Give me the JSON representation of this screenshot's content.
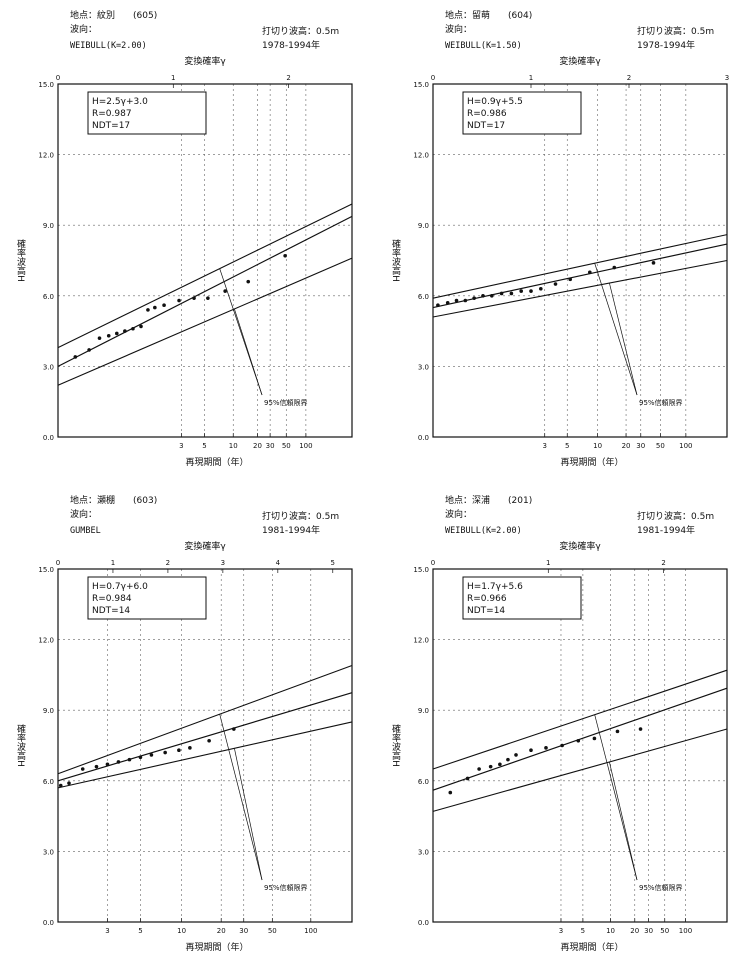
{
  "chart_data": [
    {
      "type": "scatter",
      "station": "地点：紋別　　(605)",
      "direction": "波向：",
      "distribution": "WEIBULL(K=2.00)",
      "threshold": "打切り波高：0.5m",
      "period": "1978-1994年",
      "top_axis_label": "変換確率γ",
      "bottom_axis_label": "再現期間（年）",
      "ylabel": "確率波高H",
      "gamma_ticks": [
        "0",
        "1",
        "2"
      ],
      "gamma_max": 2.55,
      "return_ticks": [
        {
          "label": "3",
          "gamma": 1.07
        },
        {
          "label": "5",
          "gamma": 1.27
        },
        {
          "label": "10",
          "gamma": 1.52
        },
        {
          "label": "20",
          "gamma": 1.73
        },
        {
          "label": "30",
          "gamma": 1.84
        },
        {
          "label": "50",
          "gamma": 1.98
        },
        {
          "label": "100",
          "gamma": 2.15
        }
      ],
      "yticks": [
        "0.0",
        "3.0",
        "6.0",
        "9.0",
        "12.0",
        "15.0"
      ],
      "ylim": [
        0,
        15
      ],
      "stats": [
        "H=2.5γ+3.0",
        "R=0.987",
        "NDT=17"
      ],
      "regression": {
        "slope": 2.5,
        "intercept": 3.0
      },
      "ci_lines": {
        "upper": [
          [
            0,
            3.8
          ],
          [
            2.55,
            9.9
          ]
        ],
        "lower": [
          [
            0,
            2.2
          ],
          [
            2.55,
            7.6
          ]
        ]
      },
      "ci_label": "95%信頼限界",
      "points": [
        [
          0.15,
          3.4
        ],
        [
          0.27,
          3.7
        ],
        [
          0.36,
          4.2
        ],
        [
          0.44,
          4.3
        ],
        [
          0.51,
          4.4
        ],
        [
          0.58,
          4.5
        ],
        [
          0.65,
          4.6
        ],
        [
          0.72,
          4.7
        ],
        [
          0.78,
          5.4
        ],
        [
          0.84,
          5.5
        ],
        [
          0.92,
          5.6
        ],
        [
          1.05,
          5.8
        ],
        [
          1.18,
          5.9
        ],
        [
          1.3,
          5.9
        ],
        [
          1.45,
          6.2
        ],
        [
          1.65,
          6.6
        ],
        [
          1.97,
          7.7
        ]
      ]
    },
    {
      "type": "scatter",
      "station": "地点：留萌　　(604)",
      "direction": "波向：",
      "distribution": "WEIBULL(K=1.50)",
      "threshold": "打切り波高：0.5m",
      "period": "1978-1994年",
      "top_axis_label": "変換確率γ",
      "bottom_axis_label": "再現期間（年）",
      "ylabel": "確率波高H",
      "gamma_ticks": [
        "0",
        "1",
        "2",
        "3"
      ],
      "gamma_max": 3.0,
      "return_ticks": [
        {
          "label": "3",
          "gamma": 1.14
        },
        {
          "label": "5",
          "gamma": 1.37
        },
        {
          "label": "10",
          "gamma": 1.68
        },
        {
          "label": "20",
          "gamma": 1.97
        },
        {
          "label": "30",
          "gamma": 2.12
        },
        {
          "label": "50",
          "gamma": 2.32
        },
        {
          "label": "100",
          "gamma": 2.58
        }
      ],
      "yticks": [
        "0.0",
        "3.0",
        "6.0",
        "9.0",
        "12.0",
        "15.0"
      ],
      "ylim": [
        0,
        15
      ],
      "stats": [
        "H=0.9γ+5.5",
        "R=0.986",
        "NDT=17"
      ],
      "regression": {
        "slope": 0.9,
        "intercept": 5.5
      },
      "ci_lines": {
        "upper": [
          [
            0,
            5.9
          ],
          [
            3.0,
            8.6
          ]
        ],
        "lower": [
          [
            0,
            5.1
          ],
          [
            3.0,
            7.5
          ]
        ]
      },
      "ci_label": "95%信頼限界",
      "points": [
        [
          0.05,
          5.6
        ],
        [
          0.15,
          5.7
        ],
        [
          0.24,
          5.8
        ],
        [
          0.33,
          5.8
        ],
        [
          0.42,
          5.9
        ],
        [
          0.51,
          6.0
        ],
        [
          0.6,
          6.0
        ],
        [
          0.7,
          6.1
        ],
        [
          0.8,
          6.1
        ],
        [
          0.9,
          6.2
        ],
        [
          1.0,
          6.2
        ],
        [
          1.1,
          6.3
        ],
        [
          1.25,
          6.5
        ],
        [
          1.4,
          6.7
        ],
        [
          1.6,
          7.0
        ],
        [
          1.85,
          7.2
        ],
        [
          2.25,
          7.4
        ]
      ]
    },
    {
      "type": "scatter",
      "station": "地点：瀬棚　　(603)",
      "direction": "波向：",
      "distribution": "GUMBEL",
      "threshold": "打切り波高：0.5m",
      "period": "1981-1994年",
      "top_axis_label": "変換確率γ",
      "bottom_axis_label": "再現期間（年）",
      "ylabel": "確率波高H",
      "gamma_ticks": [
        "0",
        "1",
        "2",
        "3",
        "4",
        "5"
      ],
      "gamma_max": 5.35,
      "return_ticks": [
        {
          "label": "3",
          "gamma": 0.9
        },
        {
          "label": "5",
          "gamma": 1.5
        },
        {
          "label": "10",
          "gamma": 2.25
        },
        {
          "label": "20",
          "gamma": 2.97
        },
        {
          "label": "30",
          "gamma": 3.38
        },
        {
          "label": "50",
          "gamma": 3.9
        },
        {
          "label": "100",
          "gamma": 4.6
        }
      ],
      "yticks": [
        "0.0",
        "3.0",
        "6.0",
        "9.0",
        "12.0",
        "15.0"
      ],
      "ylim": [
        0,
        15
      ],
      "stats": [
        "H=0.7γ+6.0",
        "R=0.984",
        "NDT=14"
      ],
      "regression": {
        "slope": 0.7,
        "intercept": 6.0
      },
      "ci_lines": {
        "upper": [
          [
            0,
            6.3
          ],
          [
            5.35,
            10.9
          ]
        ],
        "lower": [
          [
            0,
            5.7
          ],
          [
            5.35,
            8.5
          ]
        ]
      },
      "ci_label": "95%信頼限界",
      "points": [
        [
          0.05,
          5.8
        ],
        [
          0.2,
          5.9
        ],
        [
          0.45,
          6.5
        ],
        [
          0.7,
          6.6
        ],
        [
          0.9,
          6.7
        ],
        [
          1.1,
          6.8
        ],
        [
          1.3,
          6.9
        ],
        [
          1.5,
          7.0
        ],
        [
          1.7,
          7.1
        ],
        [
          1.95,
          7.2
        ],
        [
          2.2,
          7.3
        ],
        [
          2.4,
          7.4
        ],
        [
          2.75,
          7.7
        ],
        [
          3.2,
          8.2
        ]
      ]
    },
    {
      "type": "scatter",
      "station": "地点：深浦　　(201)",
      "direction": "波向：",
      "distribution": "WEIBULL(K=2.00)",
      "threshold": "打切り波高：0.5m",
      "period": "1981-1994年",
      "top_axis_label": "変換確率γ",
      "bottom_axis_label": "再現期間（年）",
      "ylabel": "確率波高H",
      "gamma_ticks": [
        "0",
        "1",
        "2"
      ],
      "gamma_max": 2.55,
      "return_ticks": [
        {
          "label": "3",
          "gamma": 1.11
        },
        {
          "label": "5",
          "gamma": 1.3
        },
        {
          "label": "10",
          "gamma": 1.54
        },
        {
          "label": "20",
          "gamma": 1.75
        },
        {
          "label": "30",
          "gamma": 1.87
        },
        {
          "label": "50",
          "gamma": 2.01
        },
        {
          "label": "100",
          "gamma": 2.19
        }
      ],
      "yticks": [
        "0.0",
        "3.0",
        "6.0",
        "9.0",
        "12.0",
        "15.0"
      ],
      "ylim": [
        0,
        15
      ],
      "stats": [
        "H=1.7γ+5.6",
        "R=0.966",
        "NDT=14"
      ],
      "regression": {
        "slope": 1.7,
        "intercept": 5.6
      },
      "ci_lines": {
        "upper": [
          [
            0,
            6.5
          ],
          [
            2.55,
            10.7
          ]
        ],
        "lower": [
          [
            0,
            4.7
          ],
          [
            2.55,
            8.2
          ]
        ]
      },
      "ci_label": "95%信頼限界",
      "points": [
        [
          0.15,
          5.5
        ],
        [
          0.3,
          6.1
        ],
        [
          0.4,
          6.5
        ],
        [
          0.5,
          6.6
        ],
        [
          0.58,
          6.7
        ],
        [
          0.65,
          6.9
        ],
        [
          0.72,
          7.1
        ],
        [
          0.85,
          7.3
        ],
        [
          0.98,
          7.4
        ],
        [
          1.12,
          7.5
        ],
        [
          1.26,
          7.7
        ],
        [
          1.4,
          7.8
        ],
        [
          1.6,
          8.1
        ],
        [
          1.8,
          8.2
        ]
      ]
    }
  ]
}
